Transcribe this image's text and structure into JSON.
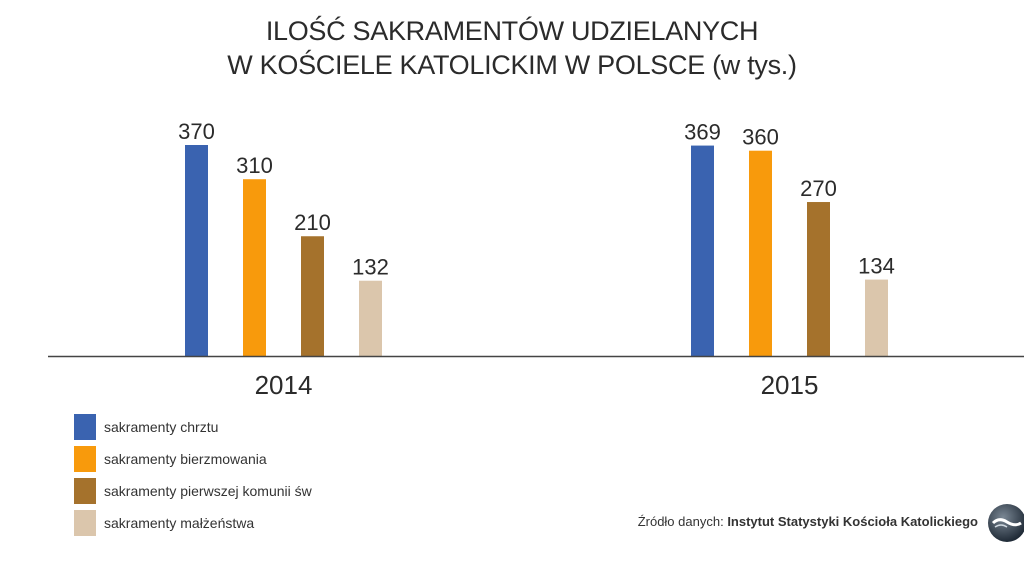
{
  "chart_data": {
    "type": "bar",
    "title": "ILOŚĆ SAKRAMENTÓW UDZIELANYCH\nW KOŚCIELE KATOLICKIM W POLSCE (w tys.)",
    "title_lines": [
      "ILOŚĆ SAKRAMENTÓW UDZIELANYCH",
      "W KOŚCIELE KATOLICKIM W POLSCE (w tys.)"
    ],
    "categories": [
      "2014",
      "2015"
    ],
    "series": [
      {
        "name": "sakramenty chrztu",
        "color": "#3a63b0",
        "values": [
          370,
          369
        ]
      },
      {
        "name": "sakramenty bierzmowania",
        "color": "#f89a0c",
        "values": [
          310,
          360
        ]
      },
      {
        "name": "sakramenty pierwszej komunii św",
        "color": "#a5722c",
        "values": [
          210,
          270
        ]
      },
      {
        "name": "sakramenty małżeństwa",
        "color": "#dbc6ac",
        "values": [
          132,
          134
        ]
      }
    ],
    "ylim": [
      0,
      370
    ],
    "grid": false,
    "legend_position": "bottom-left",
    "data_labels": true
  },
  "source": {
    "prefix": "Źródło danych:",
    "name": "Instytut Statystyki Kościoła Katolickiego"
  },
  "logo": {
    "icon": "tvn24-logo-icon"
  }
}
